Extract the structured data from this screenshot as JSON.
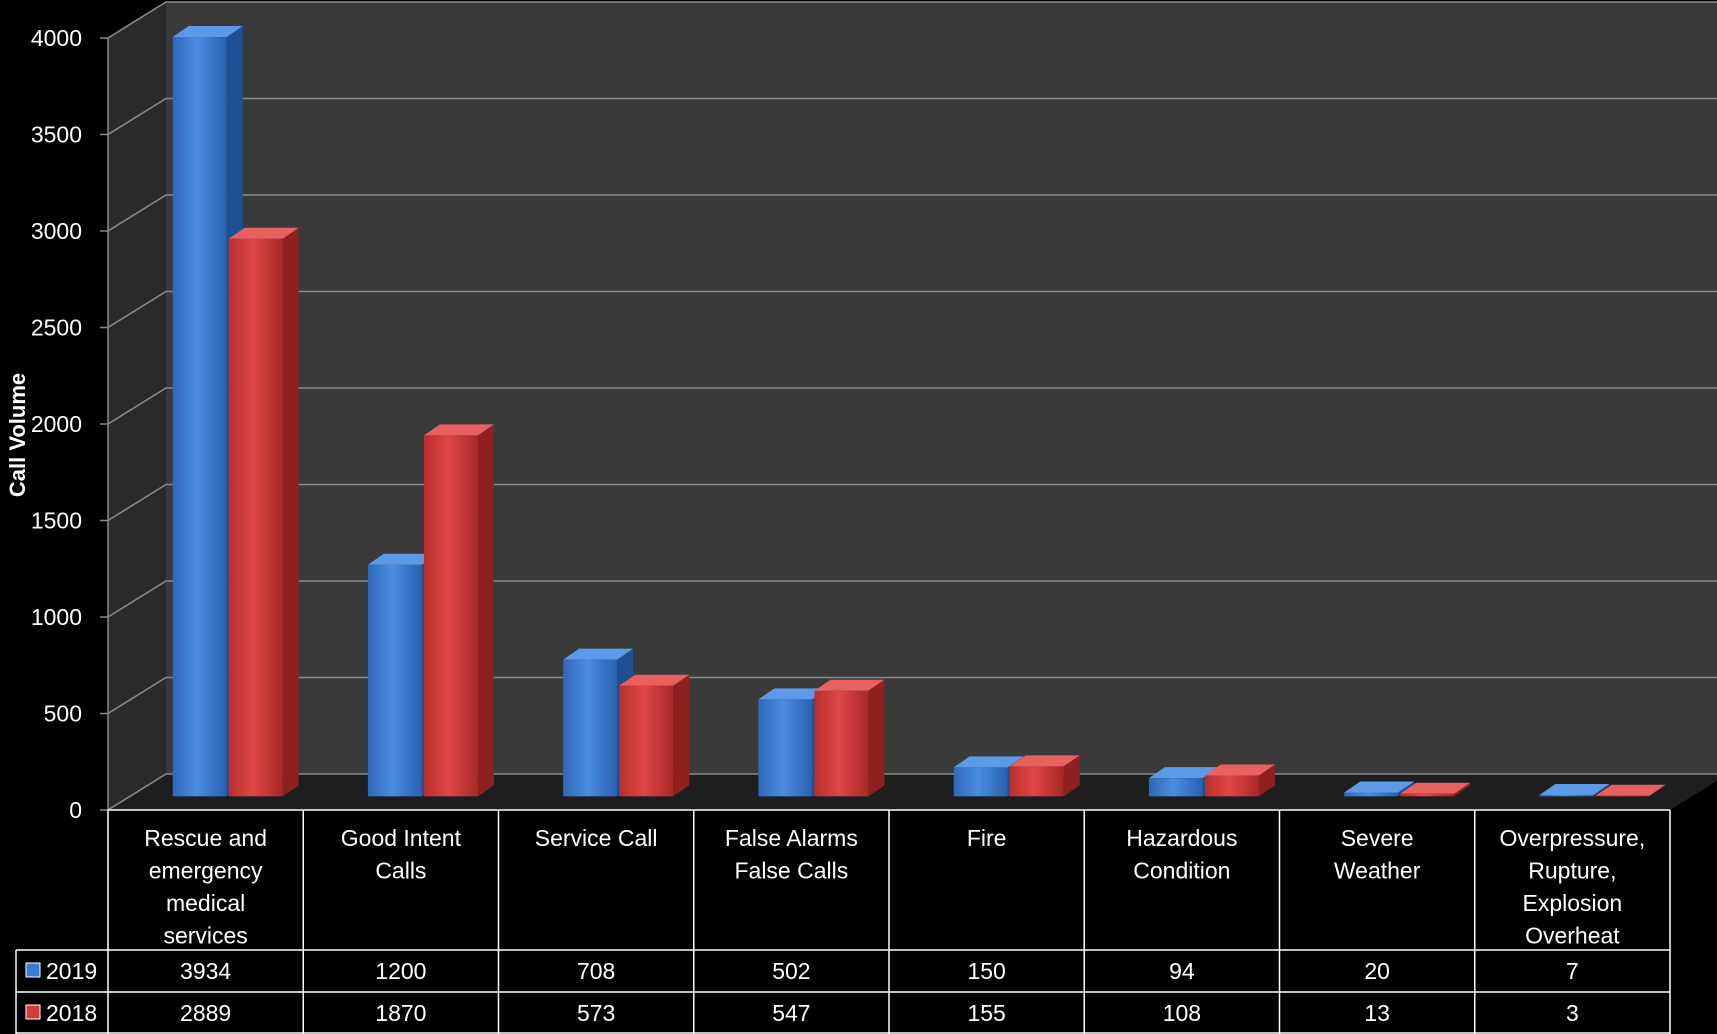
{
  "chart_data": {
    "type": "bar",
    "title": "",
    "ylabel": "Call Volume",
    "xlabel": "",
    "ylim": [
      0,
      4000
    ],
    "yticks": [
      "0",
      "500",
      "1000",
      "1500",
      "2000",
      "2500",
      "3000",
      "3500",
      "4000"
    ],
    "grid": true,
    "legend": "data-table-left",
    "categories": [
      [
        "Rescue and",
        "emergency",
        "medical",
        "services"
      ],
      [
        "Good Intent",
        "Calls"
      ],
      [
        "Service Call"
      ],
      [
        "False Alarms",
        "False Calls"
      ],
      [
        "Fire"
      ],
      [
        "Hazardous",
        "Condition"
      ],
      [
        "Severe",
        "Weather"
      ],
      [
        "Overpressure,",
        "Rupture,",
        "Explosion",
        "Overheat"
      ]
    ],
    "series": [
      {
        "name": "2019",
        "color": "#3a7bd5",
        "values": [
          3934,
          1200,
          708,
          502,
          150,
          94,
          20,
          7
        ]
      },
      {
        "name": "2018",
        "color": "#d63a3a",
        "values": [
          2889,
          1870,
          573,
          547,
          155,
          108,
          13,
          3
        ]
      }
    ]
  }
}
